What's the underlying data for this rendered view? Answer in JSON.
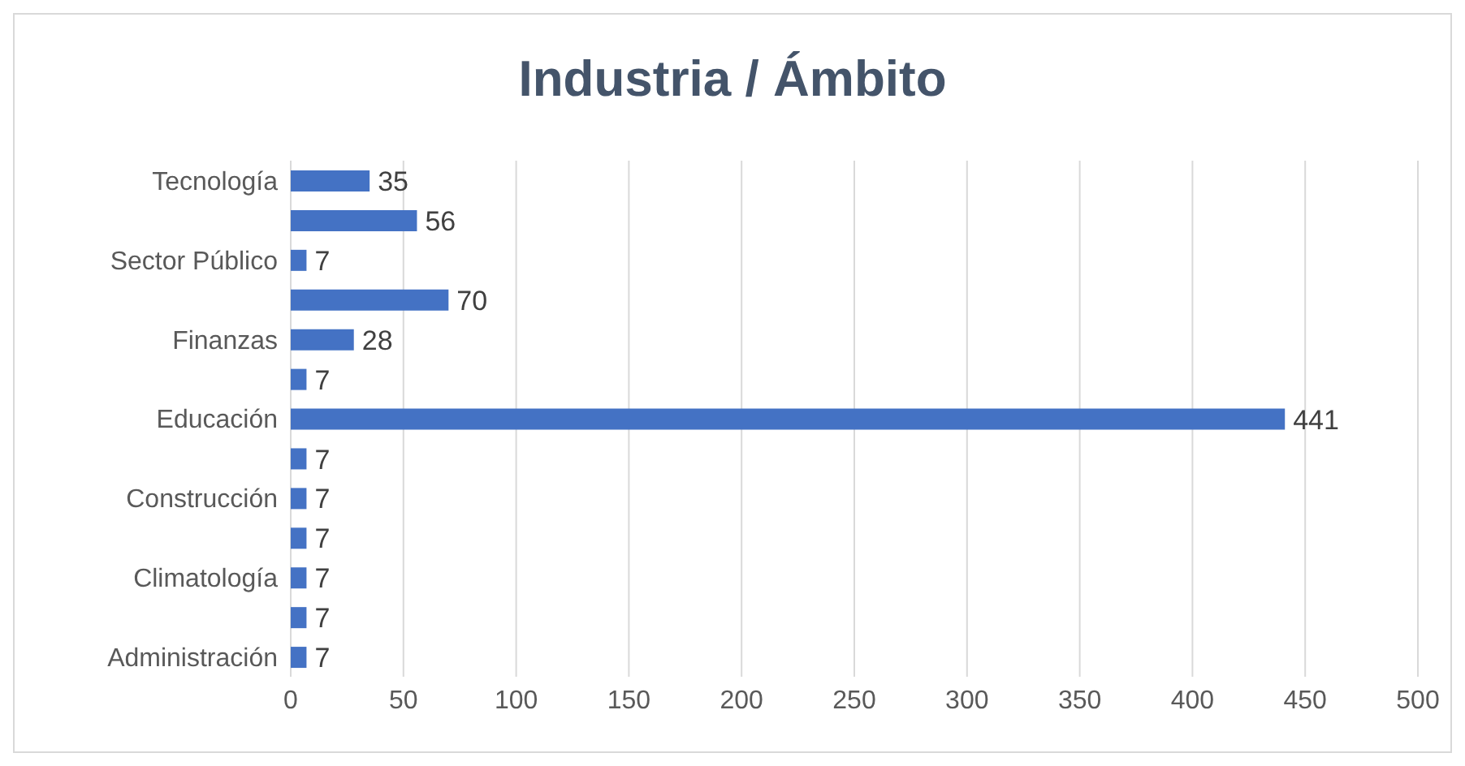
{
  "chart_data": {
    "type": "bar",
    "orientation": "horizontal",
    "title": "Industria / Ámbito",
    "categories": [
      "Tecnología",
      null,
      "Sector Público",
      null,
      "Finanzas",
      null,
      "Educación",
      null,
      "Construcción",
      null,
      "Climatología",
      null,
      "Administración"
    ],
    "values": [
      35,
      56,
      7,
      70,
      28,
      7,
      441,
      7,
      7,
      7,
      7,
      7,
      7
    ],
    "color": "#4472c4",
    "xlim": [
      0,
      500
    ],
    "xticks": [
      0,
      50,
      100,
      150,
      200,
      250,
      300,
      350,
      400,
      450,
      500
    ],
    "grid": "x",
    "data_labels": true,
    "legend": false
  }
}
